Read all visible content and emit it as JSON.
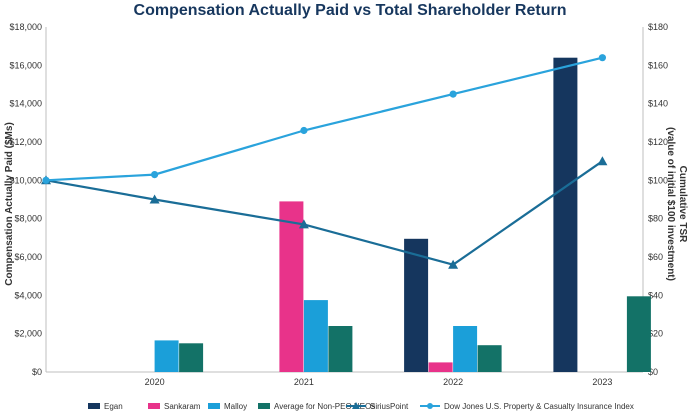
{
  "chart_data": {
    "type": "bar",
    "title": "Compensation Actually Paid vs Total Shareholder Return",
    "categories": [
      "2020",
      "2021",
      "2022",
      "2023"
    ],
    "ylabel": "Compensation Actually Paid ($Ms)",
    "y2label_line1": "Cumulative TSR",
    "y2label_line2": "(value of initial $100 investment)",
    "ylim": [
      0,
      18000
    ],
    "y2lim": [
      0,
      180
    ],
    "yticks": [
      "$0",
      "$2,000",
      "$4,000",
      "$6,000",
      "$8,000",
      "$10,000",
      "$12,000",
      "$14,000",
      "$16,000",
      "$18,000"
    ],
    "y2ticks": [
      "$0",
      "$20",
      "$40",
      "$60",
      "$80",
      "$100",
      "$120",
      "$140",
      "$160",
      "$180"
    ],
    "grid": false,
    "legend_position": "bottom",
    "series": [
      {
        "name": "Egan",
        "kind": "bar",
        "color": "#15365e",
        "values": [
          null,
          null,
          6950,
          16400
        ]
      },
      {
        "name": "Sankaram",
        "kind": "bar",
        "color": "#e8338a",
        "values": [
          null,
          8900,
          500,
          null
        ]
      },
      {
        "name": "Malloy",
        "kind": "bar",
        "color": "#1b9fd9",
        "values": [
          1650,
          3750,
          2400,
          null
        ]
      },
      {
        "name": "Average for Non-PEO NEOs",
        "kind": "bar",
        "color": "#137267",
        "values": [
          1500,
          2400,
          1400,
          3950
        ]
      },
      {
        "name": "SiriusPoint",
        "kind": "line",
        "marker": "triangle",
        "color": "#1a6d97",
        "x": [
          "2019",
          "2020",
          "2021",
          "2022",
          "2023"
        ],
        "values": [
          100,
          90,
          77,
          56,
          110
        ]
      },
      {
        "name": "Dow Jones U.S. Property & Casualty Insurance Index",
        "kind": "line",
        "marker": "circle",
        "color": "#2aa3dc",
        "x": [
          "2019",
          "2020",
          "2021",
          "2022",
          "2023"
        ],
        "values": [
          100,
          103,
          126,
          145,
          164
        ]
      }
    ]
  }
}
